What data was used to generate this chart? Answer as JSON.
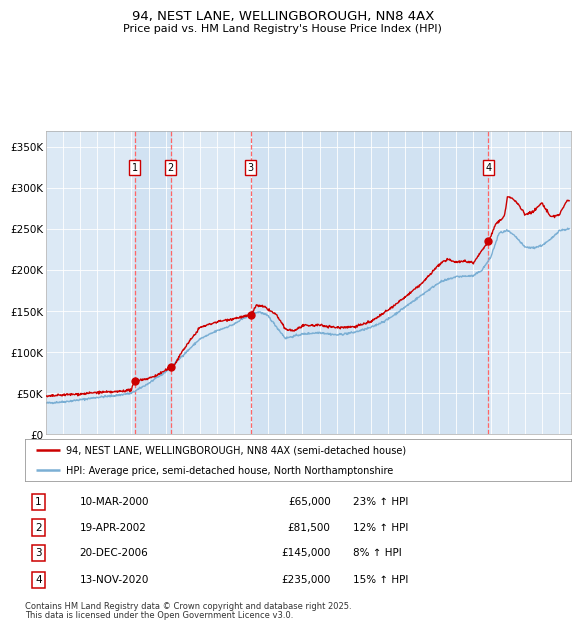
{
  "title": "94, NEST LANE, WELLINGBOROUGH, NN8 4AX",
  "subtitle": "Price paid vs. HM Land Registry's House Price Index (HPI)",
  "plot_bg_color": "#dce9f5",
  "ylim": [
    0,
    370000
  ],
  "yticks": [
    0,
    50000,
    100000,
    150000,
    200000,
    250000,
    300000,
    350000
  ],
  "ytick_labels": [
    "£0",
    "£50K",
    "£100K",
    "£150K",
    "£200K",
    "£250K",
    "£300K",
    "£350K"
  ],
  "xlim_start": 1995.0,
  "xlim_end": 2025.7,
  "hpi_color": "#7bafd4",
  "price_color": "#cc0000",
  "vline_color": "#ff6666",
  "shade_color": "#c8ddf0",
  "legend_line1": "94, NEST LANE, WELLINGBOROUGH, NN8 4AX (semi-detached house)",
  "legend_line2": "HPI: Average price, semi-detached house, North Northamptonshire",
  "sales": [
    {
      "num": 1,
      "date_num": 2000.19,
      "price": 65000,
      "label": "10-MAR-2000",
      "pct": "23%",
      "direction": "↑"
    },
    {
      "num": 2,
      "date_num": 2002.3,
      "price": 81500,
      "label": "19-APR-2002",
      "pct": "12%",
      "direction": "↑"
    },
    {
      "num": 3,
      "date_num": 2006.97,
      "price": 145000,
      "label": "20-DEC-2006",
      "pct": "8%",
      "direction": "↑"
    },
    {
      "num": 4,
      "date_num": 2020.87,
      "price": 235000,
      "label": "13-NOV-2020",
      "pct": "15%",
      "direction": "↑"
    }
  ],
  "footer_line1": "Contains HM Land Registry data © Crown copyright and database right 2025.",
  "footer_line2": "This data is licensed under the Open Government Licence v3.0."
}
